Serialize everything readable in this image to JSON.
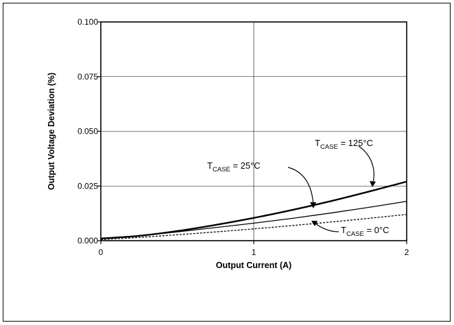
{
  "chart_data": {
    "type": "line",
    "xlabel": "Output Current (A)",
    "ylabel": "Output Voltage Deviation (%)",
    "xlim": [
      0,
      2
    ],
    "ylim": [
      0,
      0.1
    ],
    "x_ticks": [
      "0",
      "1",
      "2"
    ],
    "y_ticks": [
      "0.000",
      "0.025",
      "0.050",
      "0.075",
      "0.100"
    ],
    "grid": true,
    "series": [
      {
        "name": "T_CASE = 125°C",
        "label_main": "T",
        "label_sub": "CASE",
        "label_rest": " = 125°C",
        "style": "bold",
        "x": [
          0,
          0.25,
          0.5,
          0.75,
          1.0,
          1.25,
          1.5,
          1.75,
          2.0
        ],
        "y": [
          0.001,
          0.0022,
          0.0044,
          0.0072,
          0.0104,
          0.014,
          0.018,
          0.0224,
          0.027
        ]
      },
      {
        "name": "T_CASE = 25°C",
        "label_main": "T",
        "label_sub": "CASE",
        "label_rest": " = 25°C",
        "style": "solid",
        "x": [
          0,
          0.25,
          0.5,
          0.75,
          1.0,
          1.25,
          1.5,
          1.75,
          2.0
        ],
        "y": [
          0.0008,
          0.0022,
          0.004,
          0.006,
          0.008,
          0.0102,
          0.0126,
          0.0152,
          0.018
        ]
      },
      {
        "name": "T_CASE = 0°C",
        "label_main": "T",
        "label_sub": "CASE",
        "label_rest": " = 0°C",
        "style": "dotted",
        "x": [
          0,
          0.25,
          0.5,
          0.75,
          1.0,
          1.25,
          1.5,
          1.75,
          2.0
        ],
        "y": [
          0.0005,
          0.0015,
          0.0027,
          0.004,
          0.0054,
          0.0069,
          0.0085,
          0.0102,
          0.012
        ]
      }
    ]
  }
}
